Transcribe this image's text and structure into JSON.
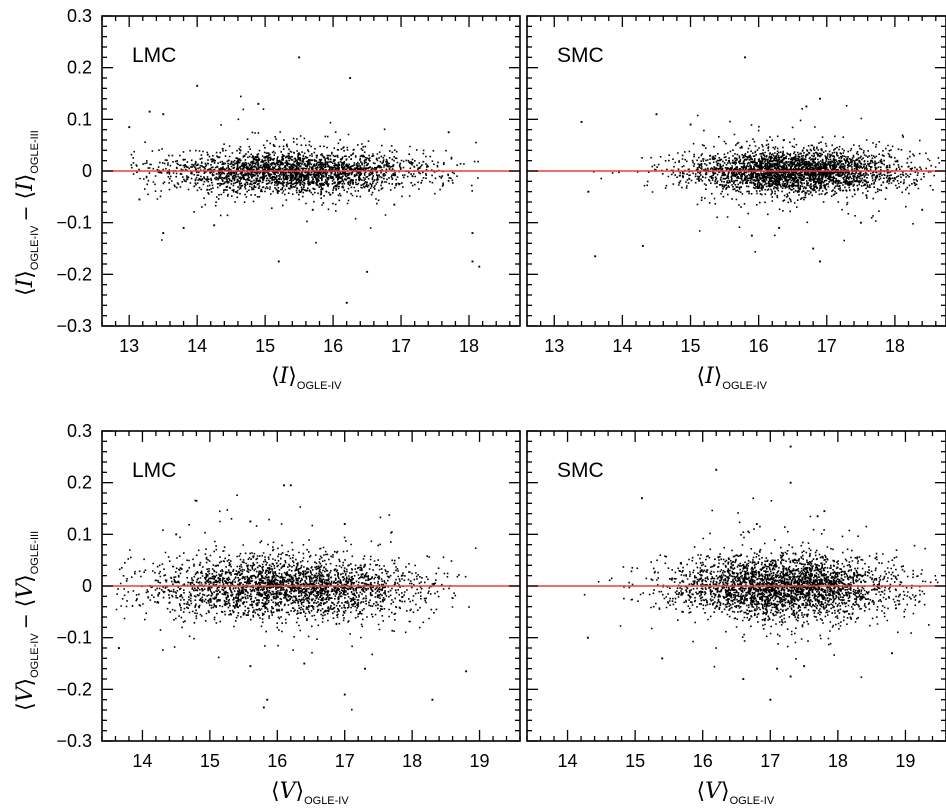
{
  "chart_data": [
    {
      "type": "scatter",
      "label": "LMC",
      "x_symbol": "I",
      "xlabel_sub": "OGLE-IV",
      "ylabel_left_sub": "OGLE-IV",
      "ylabel_right_sub": "OGLE-III",
      "xlim": [
        12.6,
        18.75
      ],
      "ylim": [
        -0.3,
        0.3
      ],
      "xticks": [
        13,
        14,
        15,
        16,
        17,
        18
      ],
      "yticks": [
        -0.3,
        -0.2,
        -0.1,
        0,
        0.1,
        0.2,
        0.3
      ],
      "ytick_labels": [
        "−0.3",
        "−0.2",
        "−0.1",
        "0",
        "0.1",
        "0.2",
        "0.3"
      ],
      "reference_line": {
        "y": 0,
        "color": "#e8403a"
      },
      "point_color": "#000000",
      "n_points": 2600,
      "cloud": {
        "x_center": 15.4,
        "x_spread": 0.95,
        "x_min": 13.0,
        "x_max": 18.6,
        "y_sigma": 0.02
      },
      "points": [
        [
          14.0,
          0.165
        ],
        [
          15.5,
          0.22
        ],
        [
          16.25,
          0.18
        ],
        [
          14.9,
          0.13
        ],
        [
          13.3,
          0.115
        ],
        [
          13.5,
          0.11
        ],
        [
          13.0,
          0.085
        ],
        [
          16.2,
          -0.255
        ],
        [
          15.2,
          -0.175
        ],
        [
          18.05,
          -0.12
        ],
        [
          18.05,
          -0.175
        ],
        [
          18.15,
          -0.185
        ],
        [
          16.5,
          -0.195
        ],
        [
          13.8,
          -0.11
        ],
        [
          13.15,
          -0.055
        ],
        [
          17.7,
          0.075
        ],
        [
          16.9,
          -0.065
        ],
        [
          14.25,
          -0.105
        ],
        [
          15.7,
          -0.075
        ],
        [
          13.5,
          -0.12
        ]
      ]
    },
    {
      "type": "scatter",
      "label": "SMC",
      "x_symbol": "I",
      "xlabel_sub": "OGLE-IV",
      "xlim": [
        12.6,
        18.75
      ],
      "ylim": [
        -0.3,
        0.3
      ],
      "xticks": [
        13,
        14,
        15,
        16,
        17,
        18
      ],
      "yticks": [
        -0.3,
        -0.2,
        -0.1,
        0,
        0.1,
        0.2,
        0.3
      ],
      "reference_line": {
        "y": 0,
        "color": "#e8403a"
      },
      "point_color": "#000000",
      "n_points": 3000,
      "cloud": {
        "x_center": 16.5,
        "x_spread": 0.8,
        "x_min": 13.3,
        "x_max": 18.7,
        "y_sigma": 0.02
      },
      "points": [
        [
          15.8,
          0.22
        ],
        [
          16.9,
          0.14
        ],
        [
          16.7,
          0.125
        ],
        [
          14.5,
          0.11
        ],
        [
          13.4,
          0.095
        ],
        [
          15.0,
          0.09
        ],
        [
          14.3,
          -0.145
        ],
        [
          16.9,
          -0.175
        ],
        [
          16.8,
          -0.15
        ],
        [
          13.6,
          -0.165
        ],
        [
          17.5,
          -0.1
        ],
        [
          15.9,
          -0.125
        ],
        [
          16.3,
          -0.11
        ],
        [
          18.4,
          -0.075
        ],
        [
          13.5,
          -0.04
        ]
      ]
    },
    {
      "type": "scatter",
      "label": "LMC",
      "x_symbol": "V",
      "xlabel_sub": "OGLE-IV",
      "ylabel_left_sub": "OGLE-IV",
      "ylabel_right_sub": "OGLE-III",
      "xlim": [
        13.4,
        19.6
      ],
      "ylim": [
        -0.3,
        0.3
      ],
      "xticks": [
        14,
        15,
        16,
        17,
        18,
        19
      ],
      "yticks": [
        -0.3,
        -0.2,
        -0.1,
        0,
        0.1,
        0.2,
        0.3
      ],
      "ytick_labels": [
        "−0.3",
        "−0.2",
        "−0.1",
        "0",
        "0.1",
        "0.2",
        "0.3"
      ],
      "reference_line": {
        "y": 0,
        "color": "#e8403a"
      },
      "point_color": "#000000",
      "n_points": 2700,
      "cloud": {
        "x_center": 16.1,
        "x_spread": 1.0,
        "x_min": 13.6,
        "x_max": 19.2,
        "y_sigma": 0.03
      },
      "points": [
        [
          16.1,
          0.195
        ],
        [
          16.2,
          0.195
        ],
        [
          14.8,
          0.165
        ],
        [
          15.6,
          0.125
        ],
        [
          17.0,
          0.12
        ],
        [
          15.8,
          -0.235
        ],
        [
          15.85,
          -0.22
        ],
        [
          18.3,
          -0.22
        ],
        [
          17.0,
          -0.21
        ],
        [
          18.8,
          -0.165
        ],
        [
          13.65,
          -0.12
        ],
        [
          16.4,
          -0.15
        ],
        [
          15.6,
          -0.155
        ],
        [
          17.3,
          -0.16
        ],
        [
          14.5,
          0.1
        ]
      ]
    },
    {
      "type": "scatter",
      "label": "SMC",
      "x_symbol": "V",
      "xlabel_sub": "OGLE-IV",
      "xlim": [
        13.4,
        19.6
      ],
      "ylim": [
        -0.3,
        0.3
      ],
      "xticks": [
        14,
        15,
        16,
        17,
        18,
        19
      ],
      "yticks": [
        -0.3,
        -0.2,
        -0.1,
        0,
        0.1,
        0.2,
        0.3
      ],
      "reference_line": {
        "y": 0,
        "color": "#e8403a"
      },
      "point_color": "#000000",
      "n_points": 3000,
      "cloud": {
        "x_center": 17.2,
        "x_spread": 0.85,
        "x_min": 13.6,
        "x_max": 19.5,
        "y_sigma": 0.03
      },
      "points": [
        [
          17.3,
          0.27
        ],
        [
          16.2,
          0.225
        ],
        [
          17.3,
          0.2
        ],
        [
          15.1,
          0.17
        ],
        [
          17.8,
          0.145
        ],
        [
          17.7,
          0.135
        ],
        [
          16.8,
          0.12
        ],
        [
          17.0,
          -0.22
        ],
        [
          17.3,
          -0.175
        ],
        [
          17.1,
          -0.16
        ],
        [
          15.4,
          -0.14
        ],
        [
          18.8,
          -0.13
        ],
        [
          17.5,
          -0.155
        ],
        [
          14.3,
          -0.1
        ],
        [
          16.6,
          -0.18
        ]
      ]
    }
  ]
}
